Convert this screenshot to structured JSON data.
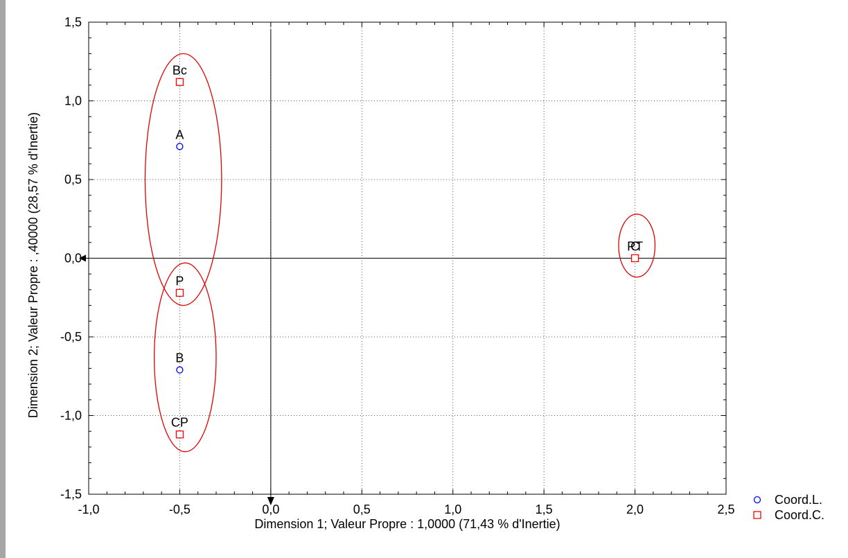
{
  "chart_data": {
    "type": "scatter",
    "title": "",
    "xlabel": "Dimension 1; Valeur Propre : 1,0000 (71,43  % d'Inertie)",
    "ylabel": "Dimension 2; Valeur Propre : ,40000 (28,57  % d'Inertie)",
    "xlim": [
      -1.0,
      2.5
    ],
    "ylim": [
      -1.5,
      1.5
    ],
    "x_ticks": [
      "-1,0",
      "-0,5",
      "0,0",
      "0,5",
      "1,0",
      "1,5",
      "2,0",
      "2,5"
    ],
    "y_ticks": [
      "1,5",
      "1,0",
      "0,5",
      "0,0",
      "-0,5",
      "-1,0",
      "-1,5"
    ],
    "grid": true,
    "legend_position": "bottom-right",
    "series": [
      {
        "name": "Coord.L.",
        "marker": "circle",
        "color": "#0000ff",
        "points": [
          {
            "label": "A",
            "x": -0.5,
            "y": 0.71
          },
          {
            "label": "B",
            "x": -0.5,
            "y": -0.71
          },
          {
            "label": "C",
            "x": 2.0,
            "y": 0.0
          }
        ]
      },
      {
        "name": "Coord.C.",
        "marker": "square",
        "color": "#ff0000",
        "points": [
          {
            "label": "Bc",
            "x": -0.5,
            "y": 1.12
          },
          {
            "label": "P",
            "x": -0.5,
            "y": -0.22
          },
          {
            "label": "CP",
            "x": -0.5,
            "y": -1.12
          },
          {
            "label": "PT",
            "x": 2.0,
            "y": 0.0
          }
        ]
      }
    ],
    "ellipses": [
      {
        "cx": -0.48,
        "cy": 0.5,
        "rx": 0.21,
        "ry": 0.8
      },
      {
        "cx": -0.47,
        "cy": -0.63,
        "rx": 0.17,
        "ry": 0.6
      },
      {
        "cx": 2.01,
        "cy": 0.08,
        "rx": 0.1,
        "ry": 0.2
      }
    ],
    "ellipse_color": "#e00000"
  }
}
